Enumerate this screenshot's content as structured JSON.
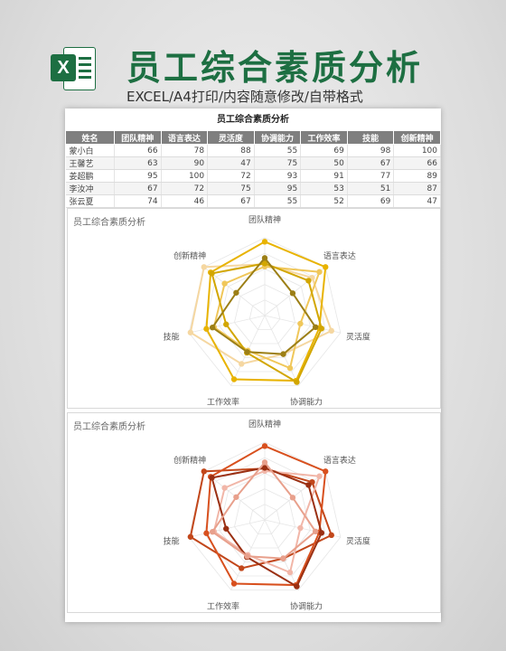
{
  "header": {
    "title": "员工综合素质分析",
    "subtitle": "EXCEL/A4打印/内容随意修改/自带格式",
    "logo_letter": "X"
  },
  "table": {
    "title": "员工综合素质分析",
    "columns": [
      "姓名",
      "团队精神",
      "语言表达",
      "灵活度",
      "协调能力",
      "工作效率",
      "技能",
      "创新精神"
    ],
    "rows": [
      {
        "name": "蒙小白",
        "values": [
          66,
          78,
          88,
          55,
          69,
          98,
          100
        ]
      },
      {
        "name": "王馨艺",
        "values": [
          63,
          90,
          47,
          75,
          50,
          67,
          66
        ]
      },
      {
        "name": "姜超鹏",
        "values": [
          95,
          100,
          72,
          93,
          91,
          77,
          89
        ]
      },
      {
        "name": "李汝冲",
        "values": [
          67,
          72,
          75,
          95,
          53,
          51,
          87
        ]
      },
      {
        "name": "张云夏",
        "values": [
          74,
          46,
          67,
          55,
          52,
          69,
          47
        ]
      }
    ]
  },
  "chart_data": [
    {
      "type": "radar",
      "title": "员工综合素质分析",
      "axes": [
        "团队精神",
        "语言表达",
        "灵活度",
        "协调能力",
        "工作效率",
        "技能",
        "创新精神"
      ],
      "rmax": 100,
      "series": [
        {
          "values": [
            66,
            78,
            88,
            55,
            69,
            98,
            100
          ],
          "color": "#f5d7a1"
        },
        {
          "values": [
            63,
            90,
            47,
            75,
            50,
            67,
            66
          ],
          "color": "#f0c75a"
        },
        {
          "values": [
            95,
            100,
            72,
            93,
            91,
            77,
            89
          ],
          "color": "#e8b300"
        },
        {
          "values": [
            67,
            72,
            75,
            95,
            53,
            51,
            87
          ],
          "color": "#d2a600"
        },
        {
          "values": [
            74,
            46,
            67,
            55,
            52,
            69,
            47
          ],
          "color": "#9c7f16"
        }
      ]
    },
    {
      "type": "radar",
      "title": "员工综合素质分析",
      "axes": [
        "团队精神",
        "语言表达",
        "灵活度",
        "协调能力",
        "工作效率",
        "技能",
        "创新精神"
      ],
      "rmax": 100,
      "series": [
        {
          "values": [
            66,
            78,
            88,
            55,
            69,
            98,
            100
          ],
          "color": "#c2471b"
        },
        {
          "values": [
            63,
            90,
            47,
            75,
            50,
            67,
            66
          ],
          "color": "#f1b6a8"
        },
        {
          "values": [
            95,
            100,
            72,
            93,
            91,
            77,
            89
          ],
          "color": "#d8501e"
        },
        {
          "values": [
            67,
            72,
            75,
            95,
            53,
            51,
            87
          ],
          "color": "#9a2f12"
        },
        {
          "values": [
            74,
            46,
            67,
            55,
            52,
            69,
            47
          ],
          "color": "#e8a08c"
        }
      ]
    }
  ]
}
